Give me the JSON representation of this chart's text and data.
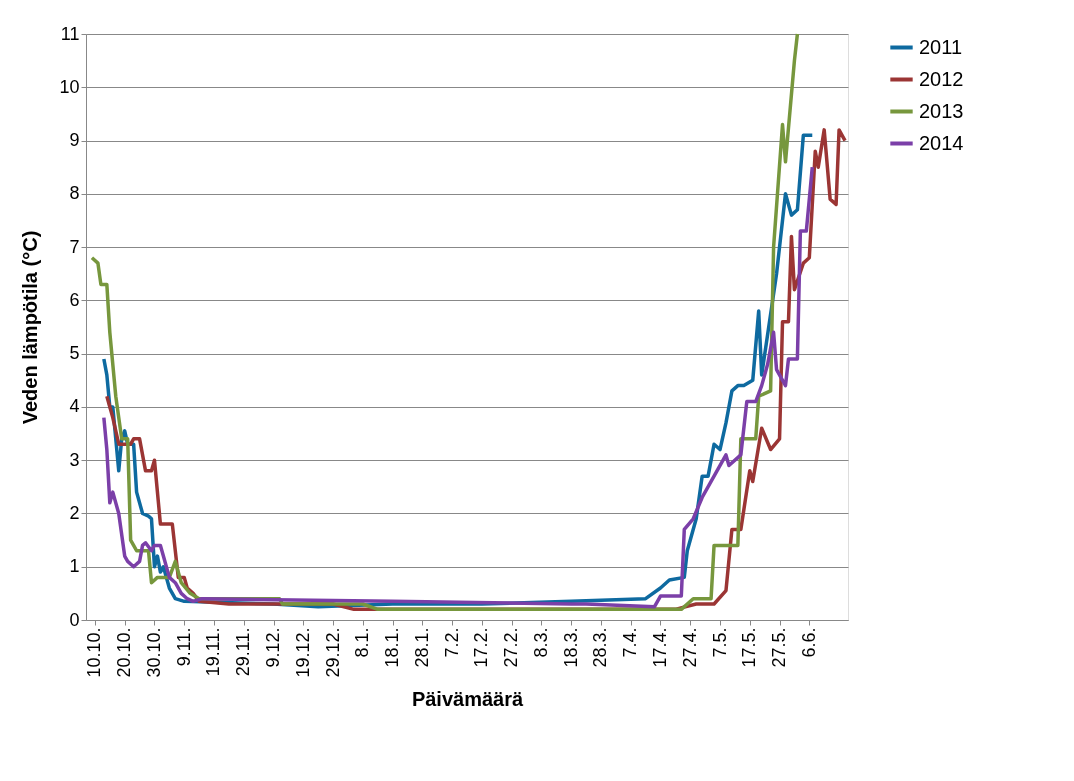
{
  "chart_data": {
    "type": "line",
    "xlabel": "Päivämäärä",
    "ylabel": "Veden lämpötila (°C)",
    "xlim": [
      "2011-10-07",
      "2012-06-19"
    ],
    "ylim": [
      0,
      11
    ],
    "yticks": [
      0,
      1,
      2,
      3,
      4,
      5,
      6,
      7,
      8,
      9,
      10,
      11
    ],
    "xticks": [
      {
        "value": "2011-10-10",
        "label": "10.10."
      },
      {
        "value": "2011-10-20",
        "label": "20.10."
      },
      {
        "value": "2011-10-30",
        "label": "30.10."
      },
      {
        "value": "2011-11-09",
        "label": "9.11."
      },
      {
        "value": "2011-11-19",
        "label": "19.11."
      },
      {
        "value": "2011-11-29",
        "label": "29.11."
      },
      {
        "value": "2011-12-09",
        "label": "9.12."
      },
      {
        "value": "2011-12-19",
        "label": "19.12."
      },
      {
        "value": "2011-12-29",
        "label": "29.12."
      },
      {
        "value": "2012-01-08",
        "label": "8.1."
      },
      {
        "value": "2012-01-18",
        "label": "18.1."
      },
      {
        "value": "2012-01-28",
        "label": "28.1."
      },
      {
        "value": "2012-02-07",
        "label": "7.2."
      },
      {
        "value": "2012-02-17",
        "label": "17.2."
      },
      {
        "value": "2012-02-27",
        "label": "27.2."
      },
      {
        "value": "2012-03-08",
        "label": "8.3."
      },
      {
        "value": "2012-03-18",
        "label": "18.3."
      },
      {
        "value": "2012-03-28",
        "label": "28.3."
      },
      {
        "value": "2012-04-07",
        "label": "7.4."
      },
      {
        "value": "2012-04-17",
        "label": "17.4."
      },
      {
        "value": "2012-04-27",
        "label": "27.4."
      },
      {
        "value": "2012-05-07",
        "label": "7.5."
      },
      {
        "value": "2012-05-17",
        "label": "17.5."
      },
      {
        "value": "2012-05-27",
        "label": "27.5."
      },
      {
        "value": "2012-06-06",
        "label": "6.6."
      }
    ],
    "grid": "y",
    "legend": "right",
    "marker": "none",
    "line_style": "solid",
    "series": [
      {
        "name": "2011",
        "color": "#0e6aa0",
        "x": [
          "2011-10-13",
          "2011-10-14",
          "2011-10-15",
          "2011-10-16",
          "2011-10-18",
          "2011-10-19",
          "2011-10-20",
          "2011-10-21",
          "2011-10-23",
          "2011-10-24",
          "2011-10-26",
          "2011-10-28",
          "2011-10-29",
          "2011-10-30",
          "2011-10-31",
          "2011-11-01",
          "2011-11-02",
          "2011-11-04",
          "2011-11-06",
          "2011-11-09",
          "2011-12-09",
          "2011-12-24",
          "2012-01-18",
          "2012-02-17",
          "2012-03-18",
          "2012-04-12",
          "2012-04-17",
          "2012-04-20",
          "2012-04-25",
          "2012-04-26",
          "2012-04-29",
          "2012-05-01",
          "2012-05-03",
          "2012-05-05",
          "2012-05-07",
          "2012-05-09",
          "2012-05-11",
          "2012-05-13",
          "2012-05-15",
          "2012-05-18",
          "2012-05-20",
          "2012-05-21",
          "2012-05-26",
          "2012-05-29",
          "2012-05-31",
          "2012-06-02",
          "2012-06-04",
          "2012-06-07"
        ],
        "values": [
          4.9,
          4.6,
          4.0,
          4.0,
          2.8,
          3.4,
          3.55,
          3.3,
          3.3,
          2.4,
          2.0,
          1.95,
          1.9,
          1.0,
          1.2,
          0.9,
          1.0,
          0.6,
          0.4,
          0.35,
          0.3,
          0.25,
          0.3,
          0.3,
          0.35,
          0.4,
          0.6,
          0.75,
          0.8,
          1.3,
          1.9,
          2.7,
          2.7,
          3.3,
          3.2,
          3.7,
          4.3,
          4.4,
          4.4,
          4.5,
          5.8,
          4.6,
          6.5,
          8.0,
          7.6,
          7.7,
          9.1,
          9.1
        ]
      },
      {
        "name": "2012",
        "color": "#9b3534",
        "x": [
          "2011-10-14",
          "2011-10-16",
          "2011-10-18",
          "2011-10-22",
          "2011-10-23",
          "2011-10-25",
          "2011-10-27",
          "2011-10-29",
          "2011-10-30",
          "2011-11-01",
          "2011-11-05",
          "2011-11-07",
          "2011-11-09",
          "2011-11-10",
          "2011-11-12",
          "2011-11-14",
          "2011-11-24",
          "2011-12-29",
          "2012-01-05",
          "2012-04-17",
          "2012-04-22",
          "2012-04-29",
          "2012-05-05",
          "2012-05-09",
          "2012-05-11",
          "2012-05-14",
          "2012-05-17",
          "2012-05-18",
          "2012-05-21",
          "2012-05-24",
          "2012-05-27",
          "2012-05-28",
          "2012-05-30",
          "2012-05-31",
          "2012-06-01",
          "2012-06-04",
          "2012-06-06",
          "2012-06-08",
          "2012-06-09",
          "2012-06-11",
          "2012-06-13",
          "2012-06-15",
          "2012-06-16",
          "2012-06-18"
        ],
        "values": [
          4.2,
          3.8,
          3.3,
          3.3,
          3.4,
          3.4,
          2.8,
          2.8,
          3.0,
          1.8,
          1.8,
          0.8,
          0.8,
          0.6,
          0.5,
          0.35,
          0.3,
          0.3,
          0.2,
          0.2,
          0.2,
          0.3,
          0.3,
          0.55,
          1.7,
          1.7,
          2.8,
          2.6,
          3.6,
          3.2,
          3.4,
          5.6,
          5.6,
          7.2,
          6.2,
          6.7,
          6.8,
          8.8,
          8.5,
          9.2,
          7.9,
          7.8,
          9.2,
          9.0
        ]
      },
      {
        "name": "2013",
        "color": "#77973d",
        "x": [
          "2011-10-09",
          "2011-10-11",
          "2011-10-12",
          "2011-10-14",
          "2011-10-15",
          "2011-10-17",
          "2011-10-19",
          "2011-10-21",
          "2011-10-22",
          "2011-10-23",
          "2011-10-24",
          "2011-10-28",
          "2011-10-29",
          "2011-10-31",
          "2011-11-04",
          "2011-11-06",
          "2011-11-08",
          "2011-11-11",
          "2011-11-14",
          "2011-12-11",
          "2011-12-12",
          "2012-01-08",
          "2012-01-13",
          "2012-04-24",
          "2012-04-28",
          "2012-05-04",
          "2012-05-05",
          "2012-05-13",
          "2012-05-14",
          "2012-05-19",
          "2012-05-20",
          "2012-05-24",
          "2012-05-25",
          "2012-05-28",
          "2012-05-29",
          "2012-06-01",
          "2012-06-02"
        ],
        "values": [
          6.8,
          6.7,
          6.3,
          6.3,
          5.4,
          4.2,
          3.4,
          3.4,
          1.5,
          1.4,
          1.3,
          1.3,
          0.7,
          0.8,
          0.8,
          1.1,
          0.7,
          0.5,
          0.4,
          0.4,
          0.3,
          0.3,
          0.2,
          0.2,
          0.4,
          0.4,
          1.4,
          1.4,
          3.4,
          3.4,
          4.2,
          4.3,
          7.0,
          9.3,
          8.6,
          10.5,
          11
        ]
      },
      {
        "name": "2014",
        "color": "#7b3fa8",
        "x": [
          "2011-10-13",
          "2011-10-14",
          "2011-10-15",
          "2011-10-16",
          "2011-10-18",
          "2011-10-20",
          "2011-10-21",
          "2011-10-23",
          "2011-10-25",
          "2011-10-26",
          "2011-10-27",
          "2011-10-29",
          "2011-10-30",
          "2011-11-01",
          "2011-11-02",
          "2011-11-04",
          "2011-11-06",
          "2011-11-08",
          "2011-11-10",
          "2011-11-12",
          "2011-11-15",
          "2012-01-18",
          "2012-03-18",
          "2012-03-23",
          "2012-04-15",
          "2012-04-17",
          "2012-04-24",
          "2012-04-25",
          "2012-04-28",
          "2012-05-01",
          "2012-05-05",
          "2012-05-09",
          "2012-05-10",
          "2012-05-14",
          "2012-05-16",
          "2012-05-19",
          "2012-05-21",
          "2012-05-23",
          "2012-05-25",
          "2012-05-26",
          "2012-05-29",
          "2012-05-30",
          "2012-06-02",
          "2012-06-03",
          "2012-06-05",
          "2012-06-07"
        ],
        "values": [
          3.8,
          3.2,
          2.2,
          2.4,
          2.0,
          1.2,
          1.1,
          1.0,
          1.1,
          1.4,
          1.45,
          1.3,
          1.4,
          1.4,
          1.2,
          0.8,
          0.7,
          0.5,
          0.4,
          0.35,
          0.4,
          0.35,
          0.3,
          0.3,
          0.25,
          0.45,
          0.45,
          1.7,
          1.9,
          2.3,
          2.7,
          3.1,
          2.9,
          3.1,
          4.1,
          4.1,
          4.4,
          4.8,
          5.4,
          4.7,
          4.4,
          4.9,
          4.9,
          7.3,
          7.3,
          8.5
        ]
      }
    ]
  }
}
